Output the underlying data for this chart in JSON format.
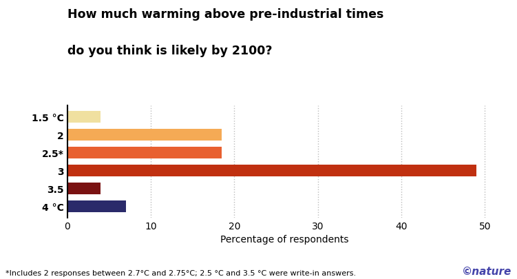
{
  "categories": [
    "1.5 °C",
    "2",
    "2.5*",
    "3",
    "3.5",
    "4 °C"
  ],
  "values": [
    4.0,
    18.5,
    18.5,
    49.0,
    4.0,
    7.0
  ],
  "bar_colors": [
    "#f0e0a0",
    "#f5aa55",
    "#e86030",
    "#c03010",
    "#7a1212",
    "#2a2a6a"
  ],
  "title_line1": "How much warming above pre-industrial times",
  "title_line2": "do you think is likely by 2100?",
  "xlabel": "Percentage of respondents",
  "xlim": [
    0,
    52
  ],
  "xticks": [
    0,
    10,
    20,
    30,
    40,
    50
  ],
  "footnote": "*Includes 2 responses between 2.7°C and 2.75°C; 2.5 °C and 3.5 °C were write-in answers.",
  "nature_text": "©nature",
  "background_color": "#ffffff",
  "grid_color": "#bbbbbb",
  "title_fontsize": 12.5,
  "axis_label_fontsize": 10,
  "tick_fontsize": 10,
  "footnote_fontsize": 8,
  "nature_fontsize": 11
}
